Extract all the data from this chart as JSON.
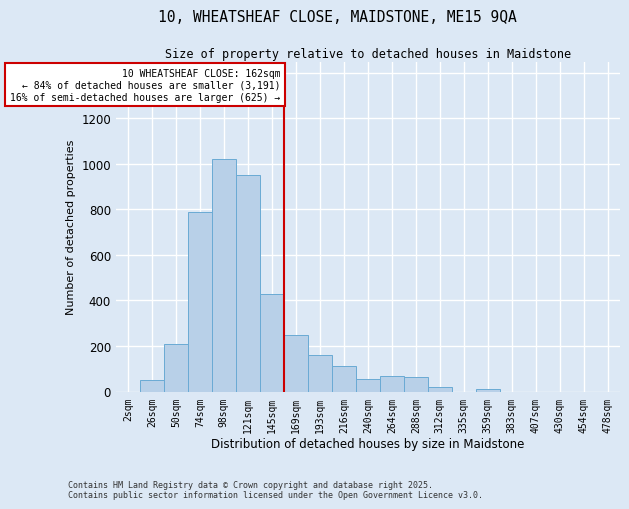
{
  "title_line1": "10, WHEATSHEAF CLOSE, MAIDSTONE, ME15 9QA",
  "title_line2": "Size of property relative to detached houses in Maidstone",
  "xlabel": "Distribution of detached houses by size in Maidstone",
  "ylabel": "Number of detached properties",
  "categories": [
    "2sqm",
    "26sqm",
    "50sqm",
    "74sqm",
    "98sqm",
    "121sqm",
    "145sqm",
    "169sqm",
    "193sqm",
    "216sqm",
    "240sqm",
    "264sqm",
    "288sqm",
    "312sqm",
    "335sqm",
    "359sqm",
    "383sqm",
    "407sqm",
    "430sqm",
    "454sqm",
    "478sqm"
  ],
  "values": [
    0,
    50,
    210,
    790,
    1020,
    950,
    430,
    250,
    160,
    110,
    55,
    70,
    65,
    20,
    0,
    10,
    0,
    0,
    0,
    0,
    0
  ],
  "bar_color": "#b8d0e8",
  "bar_edge_color": "#6aaad4",
  "background_color": "#dce8f5",
  "grid_color": "#ffffff",
  "vline_color": "#cc0000",
  "annotation_text": "10 WHEATSHEAF CLOSE: 162sqm\n← 84% of detached houses are smaller (3,191)\n16% of semi-detached houses are larger (625) →",
  "annotation_box_color": "#ffffff",
  "annotation_box_edge": "#cc0000",
  "ylim": [
    0,
    1450
  ],
  "yticks": [
    0,
    200,
    400,
    600,
    800,
    1000,
    1200,
    1400
  ],
  "footer_line1": "Contains HM Land Registry data © Crown copyright and database right 2025.",
  "footer_line2": "Contains public sector information licensed under the Open Government Licence v3.0."
}
